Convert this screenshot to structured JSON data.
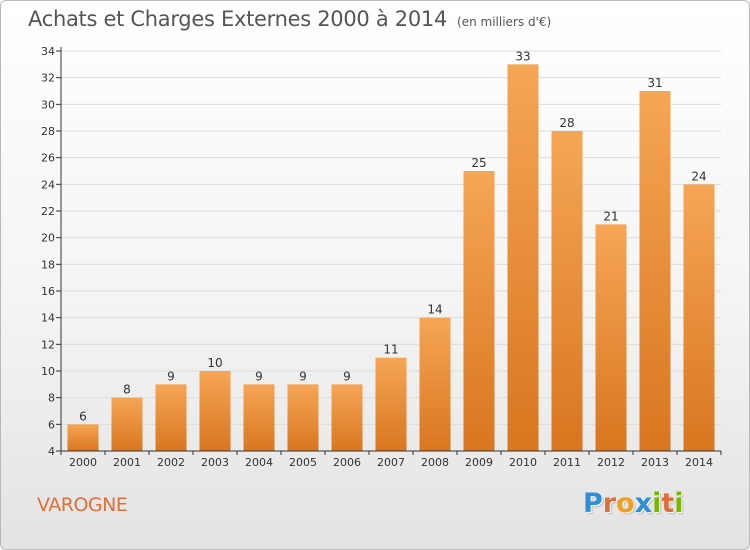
{
  "title": "Achats et Charges Externes 2000 à 2014",
  "unit": "(en milliers d'€)",
  "place": "VAROGNE",
  "logo": {
    "text": "Proxiti",
    "letters": [
      {
        "ch": "P",
        "color": "#2f8fd6"
      },
      {
        "ch": "r",
        "color": "#e0703a"
      },
      {
        "ch": "o",
        "color": "#f0a020"
      },
      {
        "ch": "x",
        "color": "#2f8fd6"
      },
      {
        "ch": "i",
        "color": "#7ab800"
      },
      {
        "ch": "t",
        "color": "#e0703a"
      },
      {
        "ch": "i",
        "color": "#7ab800"
      }
    ]
  },
  "colors": {
    "bar_light": "#f5a655",
    "bar_dark": "#d9761f",
    "axis": "#333333",
    "grid": "#dddddd",
    "text": "#333333",
    "place": "#e0703a"
  },
  "chart_data": {
    "type": "bar",
    "title": "Achats et Charges Externes 2000 à 2014",
    "subtitle": "(en milliers d'€)",
    "xlabel": "",
    "ylabel": "",
    "categories": [
      "2000",
      "2001",
      "2002",
      "2003",
      "2004",
      "2005",
      "2006",
      "2007",
      "2008",
      "2009",
      "2010",
      "2011",
      "2012",
      "2013",
      "2014"
    ],
    "values": [
      6,
      8,
      9,
      10,
      9,
      9,
      9,
      11,
      14,
      25,
      33,
      28,
      21,
      31,
      24
    ],
    "ylim": [
      4,
      34
    ],
    "yticks": [
      4,
      6,
      8,
      10,
      12,
      14,
      16,
      18,
      20,
      22,
      24,
      26,
      28,
      30,
      32,
      34
    ],
    "grid": true,
    "data_labels": true
  }
}
